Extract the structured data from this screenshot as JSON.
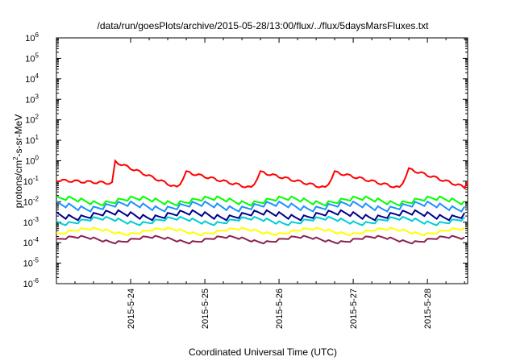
{
  "chart_data": {
    "type": "line",
    "title": "/data/run/goesPlots/archive/2015-05-28/13:00/flux/../flux/5daysMarsFluxes.txt",
    "xlabel": "Coordinated Universal Time (UTC)",
    "ylabel_main": "protons/cm",
    "ylabel_sup": "2",
    "ylabel_rest": "-s-sr-MeV",
    "y_scale": "log",
    "ylim": [
      1e-06,
      1000000.0
    ],
    "y_ticks": [
      {
        "base": "10",
        "exp": "-6",
        "value": 1e-06
      },
      {
        "base": "10",
        "exp": "-5",
        "value": 1e-05
      },
      {
        "base": "10",
        "exp": "-4",
        "value": 0.0001
      },
      {
        "base": "10",
        "exp": "-3",
        "value": 0.001
      },
      {
        "base": "10",
        "exp": "-2",
        "value": 0.01
      },
      {
        "base": "10",
        "exp": "-1",
        "value": 0.1
      },
      {
        "base": "10",
        "exp": "0",
        "value": 1
      },
      {
        "base": "10",
        "exp": "1",
        "value": 10
      },
      {
        "base": "10",
        "exp": "2",
        "value": 100
      },
      {
        "base": "10",
        "exp": "3",
        "value": 1000
      },
      {
        "base": "10",
        "exp": "4",
        "value": 10000
      },
      {
        "base": "10",
        "exp": "5",
        "value": 100000
      },
      {
        "base": "10",
        "exp": "6",
        "value": 1000000
      }
    ],
    "xlim": [
      "2015-05-23 00:00",
      "2015-05-28 13:00"
    ],
    "x_ticks": [
      "2015-5-24",
      "2015-5-25",
      "2015-5-26",
      "2015-5-27",
      "2015-5-28"
    ],
    "grid": false,
    "series": [
      {
        "color": "#ff0000",
        "pattern": "sawtooth-decay",
        "start_value": 0.1,
        "cycle_days": 1.0,
        "dip_value": 0.04,
        "peaks": [
          {
            "x": "2015-05-23 19:00",
            "y": 0.8
          },
          {
            "x": "2015-05-24 18:00",
            "y": 0.25
          },
          {
            "x": "2015-05-25 18:00",
            "y": 0.25
          },
          {
            "x": "2015-05-26 18:00",
            "y": 0.25
          },
          {
            "x": "2015-05-27 18:00",
            "y": 0.35
          }
        ],
        "end_value": 0.1
      },
      {
        "color": "#00ff00",
        "pattern": "sawtooth",
        "base": 0.008,
        "amplitude_factor": 1.8
      },
      {
        "color": "#1e90ff",
        "pattern": "sawtooth",
        "base": 0.004,
        "amplitude_factor": 2.0
      },
      {
        "color": "#00008b",
        "pattern": "sawtooth",
        "base": 0.0015,
        "amplitude_factor": 2.0
      },
      {
        "color": "#00ced1",
        "pattern": "sawtooth",
        "base": 0.0009,
        "amplitude_factor": 1.6
      },
      {
        "color": "#ffff00",
        "pattern": "sawtooth",
        "base": 0.0003,
        "amplitude_factor": 1.4
      },
      {
        "color": "#8b2252",
        "pattern": "sawtooth",
        "base": 0.00012,
        "amplitude_factor": 1.4
      }
    ]
  }
}
